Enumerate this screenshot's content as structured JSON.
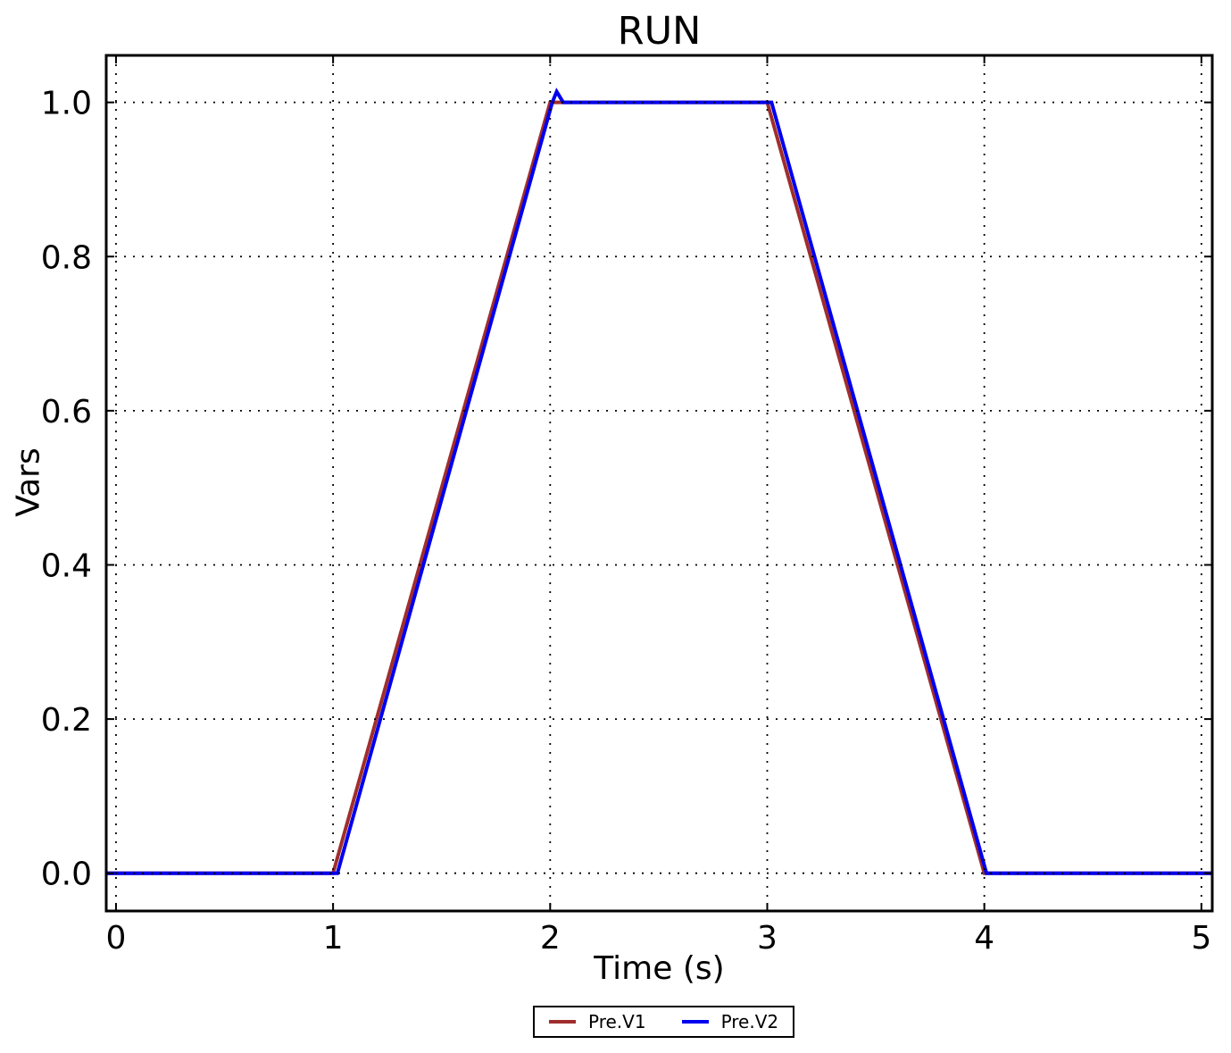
{
  "chart_data": {
    "type": "line",
    "title": "RUN",
    "xlabel": "Time (s)",
    "ylabel": "Vars",
    "xlim": [
      -0.045,
      5.05
    ],
    "ylim": [
      -0.049,
      1.061
    ],
    "x_ticks": [
      0,
      1,
      2,
      3,
      4,
      5
    ],
    "x_tick_labels": [
      "0",
      "1",
      "2",
      "3",
      "4",
      "5"
    ],
    "y_ticks": [
      0,
      0.2,
      0.4,
      0.6,
      0.8,
      1.0
    ],
    "y_tick_labels": [
      "0.0",
      "0.2",
      "0.4",
      "0.6",
      "0.8",
      "1.0"
    ],
    "grid": "dotted-black-on-top",
    "legend_position": "bottom-center-outside",
    "frame_color": "#000000",
    "series": [
      {
        "name": "Pre.V1",
        "color": "#a02d2d",
        "points": [
          [
            -0.045,
            0
          ],
          [
            1.0,
            0
          ],
          [
            2.0,
            1.0
          ],
          [
            3.0,
            1.0
          ],
          [
            4.0,
            0
          ],
          [
            5.05,
            0
          ]
        ]
      },
      {
        "name": "Pre.V2",
        "color": "#0000ee",
        "points": [
          [
            -0.045,
            0
          ],
          [
            1.02,
            0
          ],
          [
            2.01,
            1.0
          ],
          [
            2.03,
            1.014
          ],
          [
            2.06,
            1.0
          ],
          [
            3.02,
            1.0
          ],
          [
            4.01,
            0
          ],
          [
            5.05,
            0
          ]
        ]
      }
    ]
  }
}
